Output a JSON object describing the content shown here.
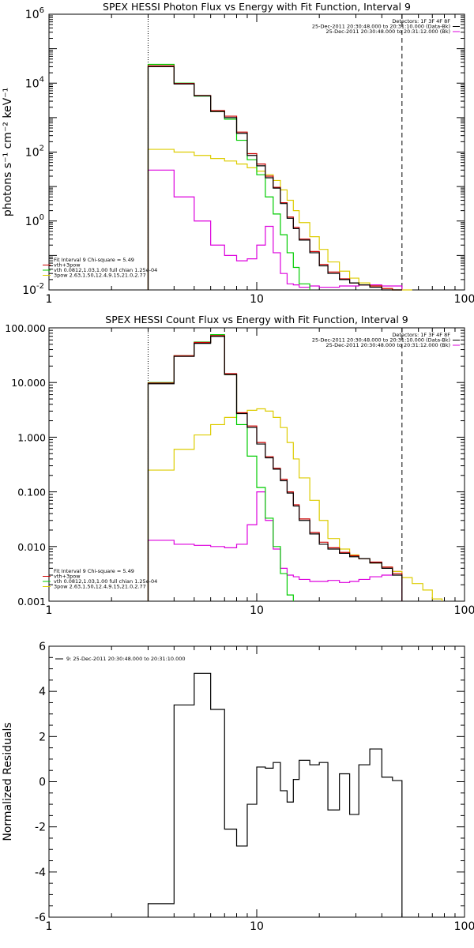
{
  "chart_data": [
    {
      "type": "line",
      "title": "SPEX HESSI Photon Flux vs Energy with Fit Function, Interval 9",
      "ylabel": "photons s⁻¹ cm⁻² keV⁻¹",
      "xlabel": "",
      "x_scale": "log",
      "y_scale": "log",
      "xlim": [
        1,
        100
      ],
      "ylim": [
        0.01,
        1000000
      ],
      "x_ticks": [
        {
          "v": 1,
          "label": "1"
        },
        {
          "v": 10,
          "label": "10"
        },
        {
          "v": 100,
          "label": "100"
        }
      ],
      "y_ticks": [
        {
          "v": 0.01,
          "base": "10",
          "exp": "-2"
        },
        {
          "v": 1,
          "base": "10",
          "exp": "0"
        },
        {
          "v": 100,
          "base": "10",
          "exp": "2"
        },
        {
          "v": 10000,
          "base": "10",
          "exp": "4"
        },
        {
          "v": 1000000,
          "base": "10",
          "exp": "6"
        }
      ],
      "vlines": [
        {
          "x": 3,
          "style": "dotted"
        },
        {
          "x": 50,
          "style": "dashed"
        }
      ],
      "legend_top_right": [
        {
          "text": "Detectors: 1F 3F 4F 8F",
          "color": "#000000",
          "marker": false
        },
        {
          "text": "25-Dec-2011 20:30:48.000 to 20:31:10.000 (Data-Bk)",
          "color": "#000000",
          "marker": true
        },
        {
          "text": "25-Dec-2011 20:30:48.000 to 20:31:12.000 (Bk)",
          "color": "#dd00dd",
          "marker": true
        }
      ],
      "legend_bottom_left": [
        {
          "text": "Fit Interval 9    Chi-square = 5.49",
          "color": "#000000",
          "marker": false
        },
        {
          "text": "vth+3pow",
          "color": "#cc0000",
          "marker": true
        },
        {
          "text": "vth 0.0812,1.03,1.00  full chian 1.25e-04",
          "color": "#00cc00",
          "marker": true
        },
        {
          "text": "3pow 2.63,1.50,12.4,9.15,21.0,2.77",
          "color": "#ddcc00",
          "marker": true
        }
      ],
      "edges": [
        3,
        4,
        5,
        6,
        7,
        8,
        9,
        10,
        11,
        12,
        13,
        14,
        15,
        16,
        18,
        20,
        22,
        25,
        28,
        31,
        35,
        40,
        45,
        50,
        56
      ],
      "series": [
        {
          "color": "#000000",
          "values": [
            30000,
            9500,
            4300,
            1500,
            1000,
            350,
            80,
            40,
            18,
            9,
            3.2,
            1.2,
            0.6,
            0.28,
            0.12,
            0.05,
            0.03,
            0.02,
            0.016,
            0.014,
            0.012,
            0.01,
            0.009,
            null
          ]
        },
        {
          "color": "#cc0000",
          "values": [
            32000,
            9800,
            4400,
            1600,
            1100,
            380,
            90,
            45,
            20,
            9.5,
            3.4,
            1.3,
            0.65,
            0.3,
            0.13,
            0.055,
            0.033,
            0.021,
            0.016,
            0.014,
            0.013,
            0.011,
            0.0095,
            null
          ]
        },
        {
          "color": "#00cc00",
          "values": [
            35000,
            10000,
            4200,
            1500,
            900,
            220,
            60,
            22,
            5,
            1.6,
            0.4,
            0.12,
            0.045,
            0.015,
            null,
            null,
            null,
            null,
            null,
            null,
            null,
            null,
            null,
            null
          ]
        },
        {
          "color": "#ddcc00",
          "values": [
            120,
            100,
            80,
            65,
            55,
            45,
            35,
            28,
            22,
            15,
            8,
            4,
            2,
            0.9,
            0.35,
            0.15,
            0.065,
            0.035,
            0.022,
            0.016,
            0.013,
            0.011,
            0.009,
            0.0075
          ]
        },
        {
          "color": "#dd00dd",
          "values": [
            30,
            5,
            1,
            0.2,
            0.1,
            0.07,
            0.08,
            0.2,
            0.7,
            0.12,
            0.03,
            0.015,
            0.014,
            0.012,
            0.013,
            0.012,
            0.012,
            0.013,
            0.013,
            0.014,
            0.014,
            0.013,
            0.013,
            null
          ]
        }
      ]
    },
    {
      "type": "line",
      "title": "SPEX HESSI Count Flux vs Energy with Fit Function, Interval 9",
      "ylabel": "",
      "xlabel": "",
      "x_scale": "log",
      "y_scale": "log",
      "xlim": [
        1,
        100
      ],
      "ylim": [
        0.001,
        100
      ],
      "x_ticks": [
        {
          "v": 1,
          "label": "1"
        },
        {
          "v": 10,
          "label": "10"
        },
        {
          "v": 100,
          "label": "100"
        }
      ],
      "y_ticks": [
        {
          "v": 0.001,
          "label": "0.001"
        },
        {
          "v": 0.01,
          "label": "0.010"
        },
        {
          "v": 0.1,
          "label": "0.100"
        },
        {
          "v": 1,
          "label": "1.000"
        },
        {
          "v": 10,
          "label": "10.000"
        },
        {
          "v": 100,
          "label": "100.000"
        }
      ],
      "vlines": [
        {
          "x": 3,
          "style": "dotted"
        },
        {
          "x": 50,
          "style": "dashed"
        }
      ],
      "legend_top_right": [
        {
          "text": "Detectors: 1F 3F 4F 8F",
          "color": "#000000",
          "marker": false
        },
        {
          "text": "25-Dec-2011 20:30:48.000 to 20:31:10.000 (Data-Bk)",
          "color": "#000000",
          "marker": true
        },
        {
          "text": "25-Dec-2011 20:30:48.000 to 20:31:12.000 (Bk)",
          "color": "#dd00dd",
          "marker": true
        }
      ],
      "legend_bottom_left": [
        {
          "text": "Fit Interval 9    Chi-square = 5.49",
          "color": "#000000",
          "marker": false
        },
        {
          "text": "vth+3pow",
          "color": "#cc0000",
          "marker": true
        },
        {
          "text": "vth 0.0812,1.03,1.00  full chian 1.25e-04",
          "color": "#00cc00",
          "marker": true
        },
        {
          "text": "3pow 2.63,1.50,12.4,9.15,21.0,2.77",
          "color": "#ddcc00",
          "marker": true
        }
      ],
      "edges": [
        3,
        4,
        5,
        6,
        7,
        8,
        9,
        10,
        11,
        12,
        13,
        14,
        15,
        16,
        18,
        20,
        22,
        25,
        28,
        31,
        35,
        40,
        45,
        50,
        56,
        63,
        70,
        78
      ],
      "series": [
        {
          "color": "#000000",
          "values": [
            9.5,
            30,
            52,
            70,
            14,
            2.7,
            1.5,
            0.75,
            0.42,
            0.26,
            0.16,
            0.095,
            0.055,
            0.03,
            0.017,
            0.011,
            0.009,
            0.0075,
            0.0065,
            0.006,
            0.005,
            0.004,
            0.003,
            null,
            null,
            null,
            null
          ]
        },
        {
          "color": "#cc0000",
          "values": [
            9.8,
            31,
            54,
            72,
            14.5,
            2.8,
            1.6,
            0.8,
            0.44,
            0.27,
            0.17,
            0.1,
            0.058,
            0.032,
            0.018,
            0.012,
            0.0095,
            0.0078,
            0.0068,
            0.006,
            0.0052,
            0.0042,
            0.0032,
            null,
            null,
            null,
            null
          ]
        },
        {
          "color": "#00cc00",
          "values": [
            10,
            31,
            55,
            75,
            14,
            1.7,
            0.45,
            0.12,
            0.033,
            0.01,
            0.0032,
            0.0013,
            null,
            null,
            null,
            null,
            null,
            null,
            null,
            null,
            null,
            null,
            null,
            null,
            null,
            null,
            null
          ]
        },
        {
          "color": "#ddcc00",
          "values": [
            0.25,
            0.6,
            1.1,
            1.7,
            2.3,
            2.8,
            3.1,
            3.3,
            3.0,
            2.3,
            1.5,
            0.8,
            0.4,
            0.18,
            0.07,
            0.03,
            0.014,
            0.009,
            0.007,
            0.006,
            0.005,
            0.0042,
            0.0035,
            0.0027,
            0.0021,
            0.0016,
            0.0011
          ]
        },
        {
          "color": "#dd00dd",
          "values": [
            0.013,
            0.011,
            0.0105,
            0.01,
            0.0095,
            0.011,
            0.025,
            0.1,
            0.03,
            0.009,
            0.004,
            0.003,
            0.0028,
            0.0025,
            0.0023,
            0.0023,
            0.0024,
            0.0022,
            0.0023,
            0.0025,
            0.0028,
            0.003,
            0.0035,
            null,
            null,
            null,
            null
          ]
        }
      ]
    },
    {
      "type": "line",
      "title": "",
      "ylabel": "Normalized Residuals",
      "xlabel": "",
      "x_scale": "log",
      "y_scale": "linear",
      "xlim": [
        1,
        100
      ],
      "ylim": [
        -6,
        6
      ],
      "x_ticks": [
        {
          "v": 1,
          "label": "1"
        },
        {
          "v": 10,
          "label": "10"
        },
        {
          "v": 100,
          "label": "100"
        }
      ],
      "y_ticks": [
        {
          "v": -6,
          "label": "-6"
        },
        {
          "v": -4,
          "label": "-4"
        },
        {
          "v": -2,
          "label": "-2"
        },
        {
          "v": 0,
          "label": "0"
        },
        {
          "v": 2,
          "label": "2"
        },
        {
          "v": 4,
          "label": "4"
        },
        {
          "v": 6,
          "label": "6"
        }
      ],
      "vlines": [],
      "legend_top_right": [],
      "legend_bottom_left": [],
      "legend_top_left": [
        {
          "text": "9: 25-Dec-2011 20:30:48.000 to 20:31:10.000",
          "color": "#000000",
          "marker": true
        }
      ],
      "edges": [
        3,
        4,
        5,
        6,
        7,
        8,
        9,
        10,
        11,
        12,
        13,
        14,
        15,
        16,
        18,
        20,
        22,
        25,
        28,
        31,
        35,
        40,
        45,
        50
      ],
      "series": [
        {
          "color": "#000000",
          "values": [
            -5.4,
            3.4,
            4.8,
            3.2,
            -2.1,
            -2.85,
            -1.0,
            0.65,
            0.6,
            0.85,
            -0.4,
            -0.9,
            0.1,
            0.95,
            0.75,
            0.85,
            -1.25,
            0.35,
            -1.45,
            0.75,
            1.45,
            0.2,
            0.05
          ]
        }
      ]
    }
  ]
}
